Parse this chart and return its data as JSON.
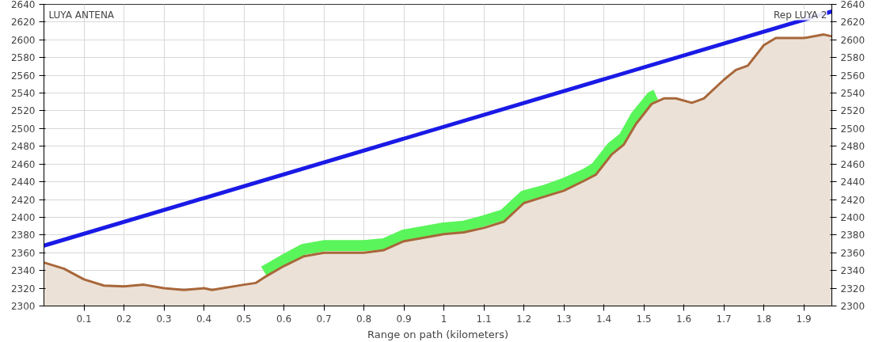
{
  "chart_data": {
    "type": "area",
    "xlabel": "Range on path (kilometers)",
    "annotations": [
      "LUYA ANTENA",
      "Rep LUYA 2"
    ],
    "xlim": [
      0,
      1.97
    ],
    "xticks": [
      0.1,
      0.2,
      0.3,
      0.4,
      0.5,
      0.6,
      0.7,
      0.8,
      0.9,
      1,
      1.1,
      1.2,
      1.3,
      1.4,
      1.5,
      1.6,
      1.7,
      1.8,
      1.9
    ],
    "ylim": [
      2300,
      2640
    ],
    "yticks": [
      2300,
      2320,
      2340,
      2360,
      2380,
      2400,
      2420,
      2440,
      2460,
      2480,
      2500,
      2520,
      2540,
      2560,
      2580,
      2600,
      2620,
      2640
    ],
    "y2lim": [
      2300,
      2640
    ],
    "y2ticks": [
      2300,
      2320,
      2340,
      2360,
      2380,
      2400,
      2420,
      2440,
      2460,
      2480,
      2500,
      2520,
      2540,
      2560,
      2580,
      2600,
      2620,
      2640
    ],
    "grid": true,
    "series": [
      {
        "color": "#a8673a",
        "x": [
          0,
          0.05,
          0.1,
          0.15,
          0.2,
          0.25,
          0.3,
          0.35,
          0.4,
          0.42,
          0.5,
          0.53,
          0.55,
          0.6,
          0.65,
          0.7,
          0.8,
          0.85,
          0.9,
          1,
          1.05,
          1.1,
          1.15,
          1.2,
          1.25,
          1.3,
          1.35,
          1.38,
          1.42,
          1.45,
          1.48,
          1.52,
          1.55,
          1.58,
          1.62,
          1.65,
          1.7,
          1.73,
          1.76,
          1.8,
          1.83,
          1.9,
          1.95,
          1.97
        ],
        "values": [
          2349,
          2342,
          2330,
          2323,
          2322,
          2324,
          2320,
          2318,
          2320,
          2318,
          2324,
          2326,
          2332,
          2345,
          2356,
          2360,
          2360,
          2363,
          2373,
          2381,
          2383,
          2388,
          2395,
          2416,
          2423,
          2430,
          2441,
          2448,
          2471,
          2482,
          2505,
          2528,
          2534,
          2534,
          2529,
          2534,
          2555,
          2566,
          2571,
          2594,
          2602,
          2602,
          2606,
          2604
        ]
      },
      {
        "type": "line",
        "color": "#5af55a",
        "x": [
          0.55,
          0.6,
          0.65,
          0.7,
          0.8,
          0.85,
          0.9,
          1,
          1.05,
          1.1,
          1.15,
          1.2,
          1.25,
          1.3,
          1.35,
          1.38,
          1.42,
          1.45,
          1.48,
          1.52,
          1.53
        ],
        "values": [
          2339,
          2352,
          2364,
          2368,
          2368,
          2370,
          2380,
          2388,
          2390,
          2396,
          2403,
          2424,
          2430,
          2438,
          2448,
          2456,
          2479,
          2490,
          2514,
          2536,
          2538
        ]
      },
      {
        "type": "line",
        "color": "#1a1ae6",
        "axis": "y2",
        "x": [
          0,
          1.97
        ],
        "values": [
          2368,
          2632
        ]
      }
    ]
  }
}
